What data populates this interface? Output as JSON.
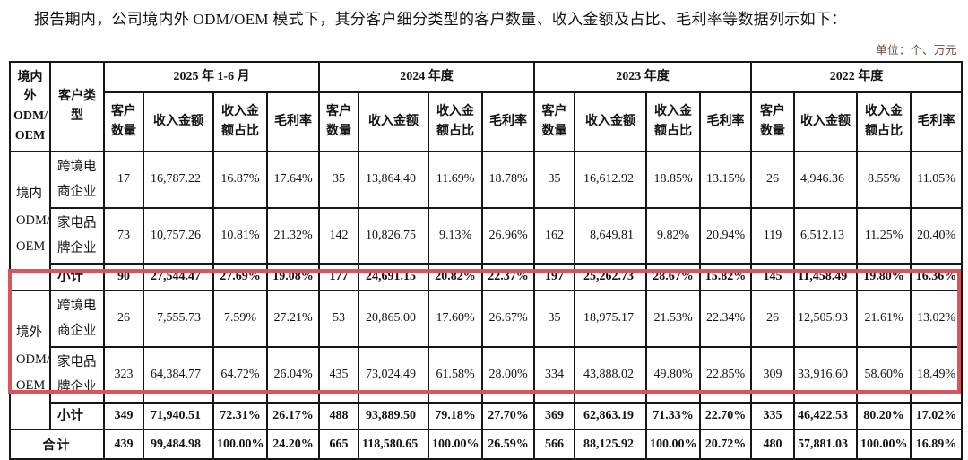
{
  "intro": "报告期内，公司境内外 ODM/OEM 模式下，其分客户细分类型的客户数量、收入金额及占比、毛利率等数据列示如下：",
  "unit_note": "单位：个、万元",
  "colors": {
    "highlight_border": "#d9545e",
    "unit_text": "#6d443c",
    "grid_line": "#161616"
  },
  "table": {
    "corner_header": "境内\n外\nODM/\nOEM",
    "customer_type_header": "客户类\n型",
    "period_groups": [
      "2025 年 1-6 月",
      "2024 年度",
      "2023 年度",
      "2022 年度"
    ],
    "metric_headers": [
      "客户\n数量",
      "收入金额",
      "收入金\n额占比",
      "毛利率"
    ],
    "groups": [
      {
        "label": "境内\nODM/\nOEM",
        "highlighted": false,
        "rows": [
          {
            "type": "跨境电\n商企业",
            "subtotal": false,
            "values": [
              "17",
              "16,787.22",
              "16.87%",
              "17.64%",
              "35",
              "13,864.40",
              "11.69%",
              "18.78%",
              "35",
              "16,612.92",
              "18.85%",
              "13.15%",
              "26",
              "4,946.36",
              "8.55%",
              "11.05%"
            ]
          },
          {
            "type": "家电品\n牌企业",
            "subtotal": false,
            "values": [
              "73",
              "10,757.26",
              "10.81%",
              "21.32%",
              "142",
              "10,826.75",
              "9.13%",
              "26.96%",
              "162",
              "8,649.81",
              "9.82%",
              "20.94%",
              "119",
              "6,512.13",
              "11.25%",
              "20.40%"
            ]
          },
          {
            "type": "小计",
            "subtotal": true,
            "values": [
              "90",
              "27,544.47",
              "27.69%",
              "19.08%",
              "177",
              "24,691.15",
              "20.82%",
              "22.37%",
              "197",
              "25,262.73",
              "28.67%",
              "15.82%",
              "145",
              "11,458.49",
              "19.80%",
              "16.36%"
            ]
          }
        ]
      },
      {
        "label": "境外\nODM/\nOEM",
        "highlighted": true,
        "rows": [
          {
            "type": "跨境电\n商企业",
            "subtotal": false,
            "values": [
              "26",
              "7,555.73",
              "7.59%",
              "27.21%",
              "53",
              "20,865.00",
              "17.60%",
              "26.67%",
              "35",
              "18,975.17",
              "21.53%",
              "22.34%",
              "26",
              "12,505.93",
              "21.61%",
              "13.02%"
            ]
          },
          {
            "type": "家电品\n牌企业",
            "subtotal": false,
            "values": [
              "323",
              "64,384.77",
              "64.72%",
              "26.04%",
              "435",
              "73,024.49",
              "61.58%",
              "28.00%",
              "334",
              "43,888.02",
              "49.80%",
              "22.85%",
              "309",
              "33,916.60",
              "58.60%",
              "18.49%"
            ]
          },
          {
            "type": "小计",
            "subtotal": true,
            "values": [
              "349",
              "71,940.51",
              "72.31%",
              "26.17%",
              "488",
              "93,889.50",
              "79.18%",
              "27.70%",
              "369",
              "62,863.19",
              "71.33%",
              "22.70%",
              "335",
              "46,422.53",
              "80.20%",
              "17.02%"
            ]
          }
        ]
      }
    ],
    "total_row": {
      "label": "合计",
      "values": [
        "439",
        "99,484.98",
        "100.00%",
        "24.20%",
        "665",
        "118,580.65",
        "100.00%",
        "26.59%",
        "566",
        "88,125.92",
        "100.00%",
        "20.72%",
        "480",
        "57,881.03",
        "100.00%",
        "16.89%"
      ]
    }
  }
}
